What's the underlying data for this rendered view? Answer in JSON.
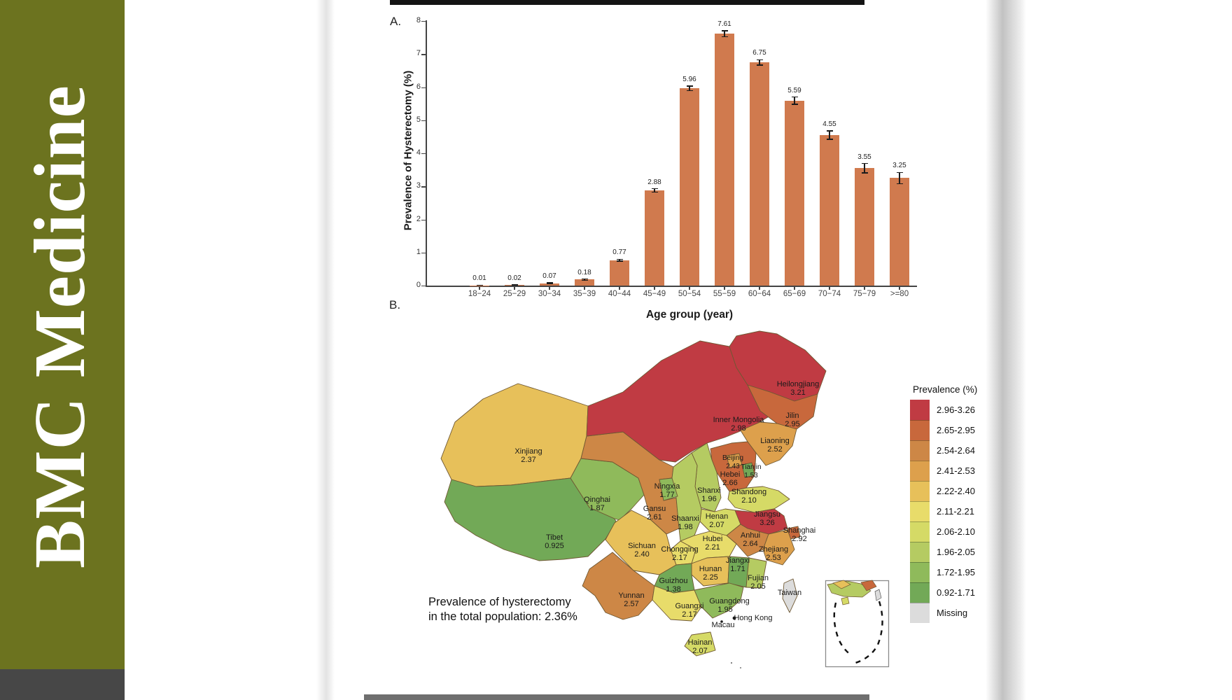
{
  "banner": {
    "title": "BMC Medicine",
    "bg_color": "#6c731f"
  },
  "figure": {
    "panel_a_label": "A.",
    "panel_b_label": "B.",
    "annotation_line1": "Prevalence of hysterectomy",
    "annotation_line2": "in the total population: 2.36%",
    "total_prevalence": "2.36%"
  },
  "chart_data": [
    {
      "type": "bar",
      "panel": "A",
      "title": "",
      "xlabel": "Age group (year)",
      "ylabel": "Prevalence of Hysterectomy (%)",
      "ylim": [
        0,
        8
      ],
      "yticks": [
        0,
        1,
        2,
        3,
        4,
        5,
        6,
        7,
        8
      ],
      "grid": false,
      "bar_color": "#d07a4e",
      "error_bar_color": "#1b1b1b",
      "categories": [
        "18−24",
        "25−29",
        "30−34",
        "35−39",
        "40−44",
        "45−49",
        "50−54",
        "55−59",
        "60−64",
        "65−69",
        "70−74",
        "75−79",
        ">=80"
      ],
      "values": [
        0.01,
        0.02,
        0.07,
        0.18,
        0.77,
        2.88,
        5.96,
        7.61,
        6.75,
        5.59,
        4.55,
        3.55,
        3.25
      ],
      "errors": [
        0.005,
        0.008,
        0.015,
        0.02,
        0.03,
        0.05,
        0.07,
        0.09,
        0.08,
        0.11,
        0.13,
        0.14,
        0.17
      ]
    },
    {
      "type": "choropleth",
      "panel": "B",
      "legend_title": "Prevalence (%)",
      "legend_position": "right",
      "legend": [
        {
          "label": "2.96-3.26",
          "color": "#c03b43"
        },
        {
          "label": "2.65-2.95",
          "color": "#c8683c"
        },
        {
          "label": "2.54-2.64",
          "color": "#cd8746"
        },
        {
          "label": "2.41-2.53",
          "color": "#dda04c"
        },
        {
          "label": "2.22-2.40",
          "color": "#e7c05a"
        },
        {
          "label": "2.11-2.21",
          "color": "#e8dc6a"
        },
        {
          "label": "2.06-2.10",
          "color": "#d5da66"
        },
        {
          "label": "1.96-2.05",
          "color": "#b5cb62"
        },
        {
          "label": "1.72-1.95",
          "color": "#8fba5b"
        },
        {
          "label": "0.92-1.71",
          "color": "#72a957"
        },
        {
          "label": "Missing",
          "color": "#dcdcdc"
        }
      ],
      "provinces": [
        {
          "key": "xinjiang",
          "name": "Xinjiang",
          "value": 2.37,
          "label": "2.37",
          "bin": 4
        },
        {
          "key": "tibet",
          "name": "Tibet",
          "value": 0.925,
          "label": "0.925",
          "bin": 9
        },
        {
          "key": "qinghai",
          "name": "Qinghai",
          "value": 1.87,
          "label": "1.87",
          "bin": 8
        },
        {
          "key": "gansu",
          "name": "Gansu",
          "value": 2.61,
          "label": "2.61",
          "bin": 2
        },
        {
          "key": "innermongolia",
          "name": "Inner Mongolia",
          "value": 2.98,
          "label": "2.98",
          "bin": 0
        },
        {
          "key": "heilongjiang",
          "name": "Heilongjiang",
          "value": 3.21,
          "label": "3.21",
          "bin": 0
        },
        {
          "key": "jilin",
          "name": "Jilin",
          "value": 2.95,
          "label": "2.95",
          "bin": 1
        },
        {
          "key": "liaoning",
          "name": "Liaoning",
          "value": 2.52,
          "label": "2.52",
          "bin": 3
        },
        {
          "key": "hebei",
          "name": "Hebei",
          "value": 2.66,
          "label": "2.66",
          "bin": 1
        },
        {
          "key": "shanxi",
          "name": "Shanxi",
          "value": 1.96,
          "label": "1.96",
          "bin": 7
        },
        {
          "key": "shandong",
          "name": "Shandong",
          "value": 2.1,
          "label": "2.10",
          "bin": 6
        },
        {
          "key": "henan",
          "name": "Henan",
          "value": 2.07,
          "label": "2.07",
          "bin": 6
        },
        {
          "key": "shaanxi",
          "name": "Shaanxi",
          "value": 1.98,
          "label": "1.98",
          "bin": 7
        },
        {
          "key": "ningxia",
          "name": "Ningxia",
          "value": 1.77,
          "label": "1.77",
          "bin": 8
        },
        {
          "key": "jiangsu",
          "name": "Jiangsu",
          "value": 3.26,
          "label": "3.26",
          "bin": 0
        },
        {
          "key": "anhui",
          "name": "Anhui",
          "value": 2.64,
          "label": "2.64",
          "bin": 2
        },
        {
          "key": "shanghai",
          "name": "Shanghai",
          "value": 2.92,
          "label": "2.92",
          "bin": 1
        },
        {
          "key": "hubei",
          "name": "Hubei",
          "value": 2.21,
          "label": "2.21",
          "bin": 5
        },
        {
          "key": "zhejiang",
          "name": "Zhejiang",
          "value": 2.53,
          "label": "2.53",
          "bin": 3
        },
        {
          "key": "chongqing",
          "name": "Chongqing",
          "value": 2.17,
          "label": "2.17",
          "bin": 5
        },
        {
          "key": "sichuan",
          "name": "Sichuan",
          "value": 2.4,
          "label": "2.40",
          "bin": 4
        },
        {
          "key": "hunan",
          "name": "Hunan",
          "value": 2.25,
          "label": "2.25",
          "bin": 4
        },
        {
          "key": "jiangxi",
          "name": "Jiangxi",
          "value": 1.71,
          "label": "1.71",
          "bin": 9
        },
        {
          "key": "guizhou",
          "name": "Guizhou",
          "value": 1.38,
          "label": "1.38",
          "bin": 9
        },
        {
          "key": "fujian",
          "name": "Fujian",
          "value": 2.05,
          "label": "2.05",
          "bin": 7
        },
        {
          "key": "yunnan",
          "name": "Yunnan",
          "value": 2.57,
          "label": "2.57",
          "bin": 2
        },
        {
          "key": "guangxi",
          "name": "Guangxi",
          "value": 2.17,
          "label": "2.17",
          "bin": 5
        },
        {
          "key": "guangdong",
          "name": "Guangdong",
          "value": 1.95,
          "label": "1.95",
          "bin": 8
        },
        {
          "key": "hainan",
          "name": "Hainan",
          "value": 2.07,
          "label": "2.07",
          "bin": 6
        },
        {
          "key": "taiwan",
          "name": "Taiwan",
          "value": null,
          "label": "",
          "bin": "missing"
        },
        {
          "key": "beijing",
          "name": "Beijing",
          "value": 2.43,
          "label": "2.43",
          "bin": 3
        },
        {
          "key": "tianjin",
          "name": "Tianjin",
          "value": 1.53,
          "label": "1.53",
          "bin": 9
        }
      ],
      "extra_labels": [
        {
          "key": "hongkong",
          "name": "Hong Kong"
        },
        {
          "key": "macau",
          "name": "Macau"
        }
      ]
    }
  ]
}
